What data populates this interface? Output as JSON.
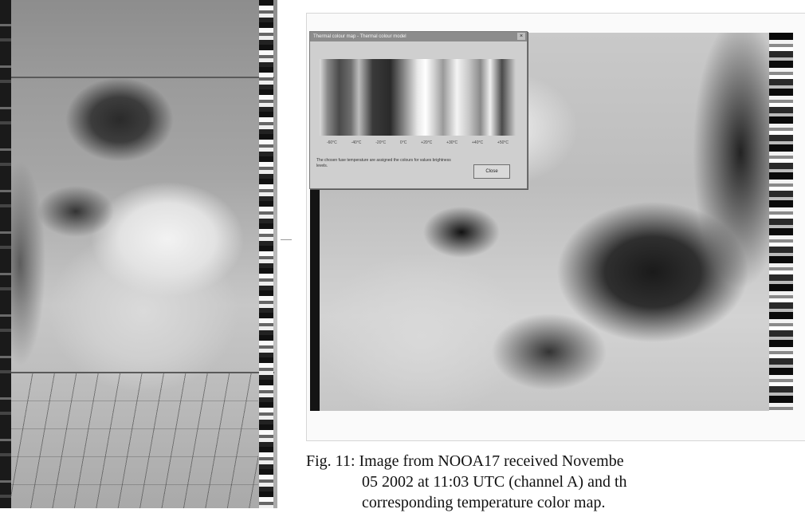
{
  "dialog": {
    "title": "Thermal colour map - Thermal colour model",
    "close_glyph": "×",
    "scale_labels": [
      "-60°C",
      "-40°C",
      "-20°C",
      "0°C",
      "+20°C",
      "+30°C",
      "+40°C",
      "+50°C"
    ],
    "note": "The chosen fuse temperature are assigned the colours for values brightness levels.",
    "button_label": "Close"
  },
  "caption": {
    "line1": "Fig. 11: Image from NOOA17 received Novembe",
    "line2": "05 2002 at 11:03 UTC (channel A) and th",
    "line3": "corresponding temperature color map."
  }
}
